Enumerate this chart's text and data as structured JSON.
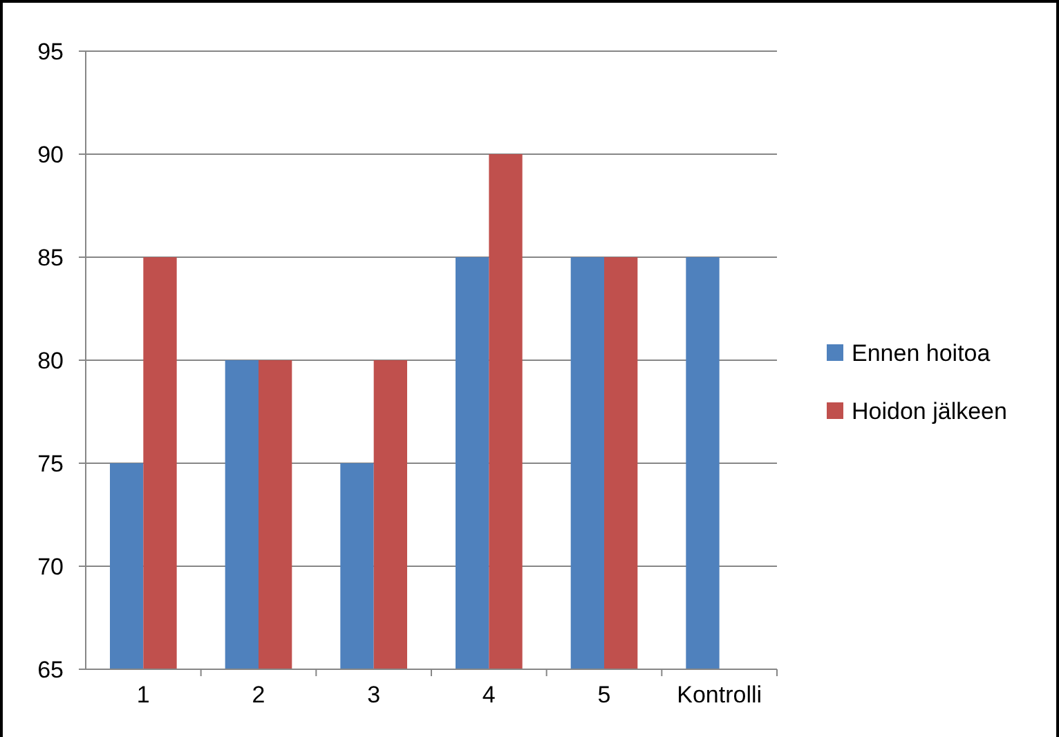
{
  "chart_data": {
    "type": "bar",
    "categories": [
      "1",
      "2",
      "3",
      "4",
      "5",
      "Kontrolli"
    ],
    "series": [
      {
        "name": "Ennen hoitoa",
        "color": "#4f81bd",
        "values": [
          75,
          80,
          75,
          85,
          85,
          85
        ]
      },
      {
        "name": "Hoidon jälkeen",
        "color": "#c0504d",
        "values": [
          85,
          80,
          80,
          90,
          85,
          null
        ]
      }
    ],
    "ylim": [
      65,
      95
    ],
    "yticks": [
      65,
      70,
      75,
      80,
      85,
      90,
      95
    ],
    "grid": "y",
    "legend": "right"
  }
}
